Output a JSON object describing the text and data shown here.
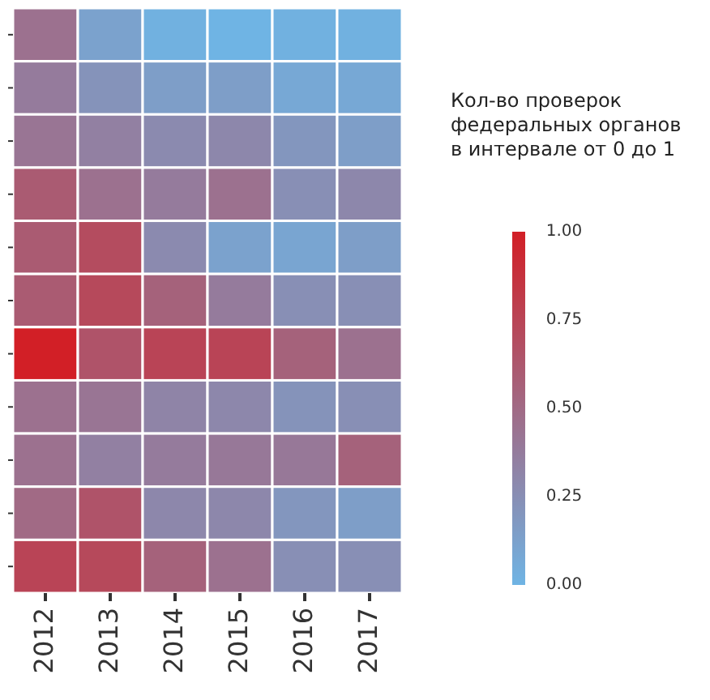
{
  "chart_data": {
    "type": "heatmap",
    "clabel": "Кол-во проверок\nфедеральных органов\nв интервале от 0 до 1",
    "categories": [
      "2012",
      "2013",
      "2014",
      "2015",
      "2016",
      "2017"
    ],
    "y_categories": [
      null,
      null,
      null,
      null,
      null,
      null,
      null,
      null,
      null,
      null,
      null
    ],
    "cells": [
      [
        0.45,
        0.12,
        0.02,
        0.0,
        0.02,
        0.02
      ],
      [
        0.38,
        0.22,
        0.15,
        0.15,
        0.08,
        0.08
      ],
      [
        0.42,
        0.35,
        0.28,
        0.3,
        0.2,
        0.15
      ],
      [
        0.6,
        0.45,
        0.38,
        0.45,
        0.25,
        0.3
      ],
      [
        0.6,
        0.7,
        0.28,
        0.12,
        0.1,
        0.15
      ],
      [
        0.6,
        0.72,
        0.55,
        0.38,
        0.25,
        0.25
      ],
      [
        1.0,
        0.65,
        0.75,
        0.75,
        0.55,
        0.45
      ],
      [
        0.45,
        0.42,
        0.32,
        0.3,
        0.22,
        0.25
      ],
      [
        0.45,
        0.35,
        0.38,
        0.4,
        0.4,
        0.55
      ],
      [
        0.5,
        0.65,
        0.3,
        0.3,
        0.2,
        0.15
      ],
      [
        0.75,
        0.72,
        0.55,
        0.45,
        0.25,
        0.25
      ]
    ],
    "clim": [
      0,
      1
    ],
    "cticks": [
      {
        "value": 1,
        "label": "1.00"
      },
      {
        "value": 0.75,
        "label": "0.75"
      },
      {
        "value": 0.5,
        "label": "0.50"
      },
      {
        "value": 0.25,
        "label": "0.25"
      },
      {
        "value": 0,
        "label": "0.00"
      }
    ]
  }
}
